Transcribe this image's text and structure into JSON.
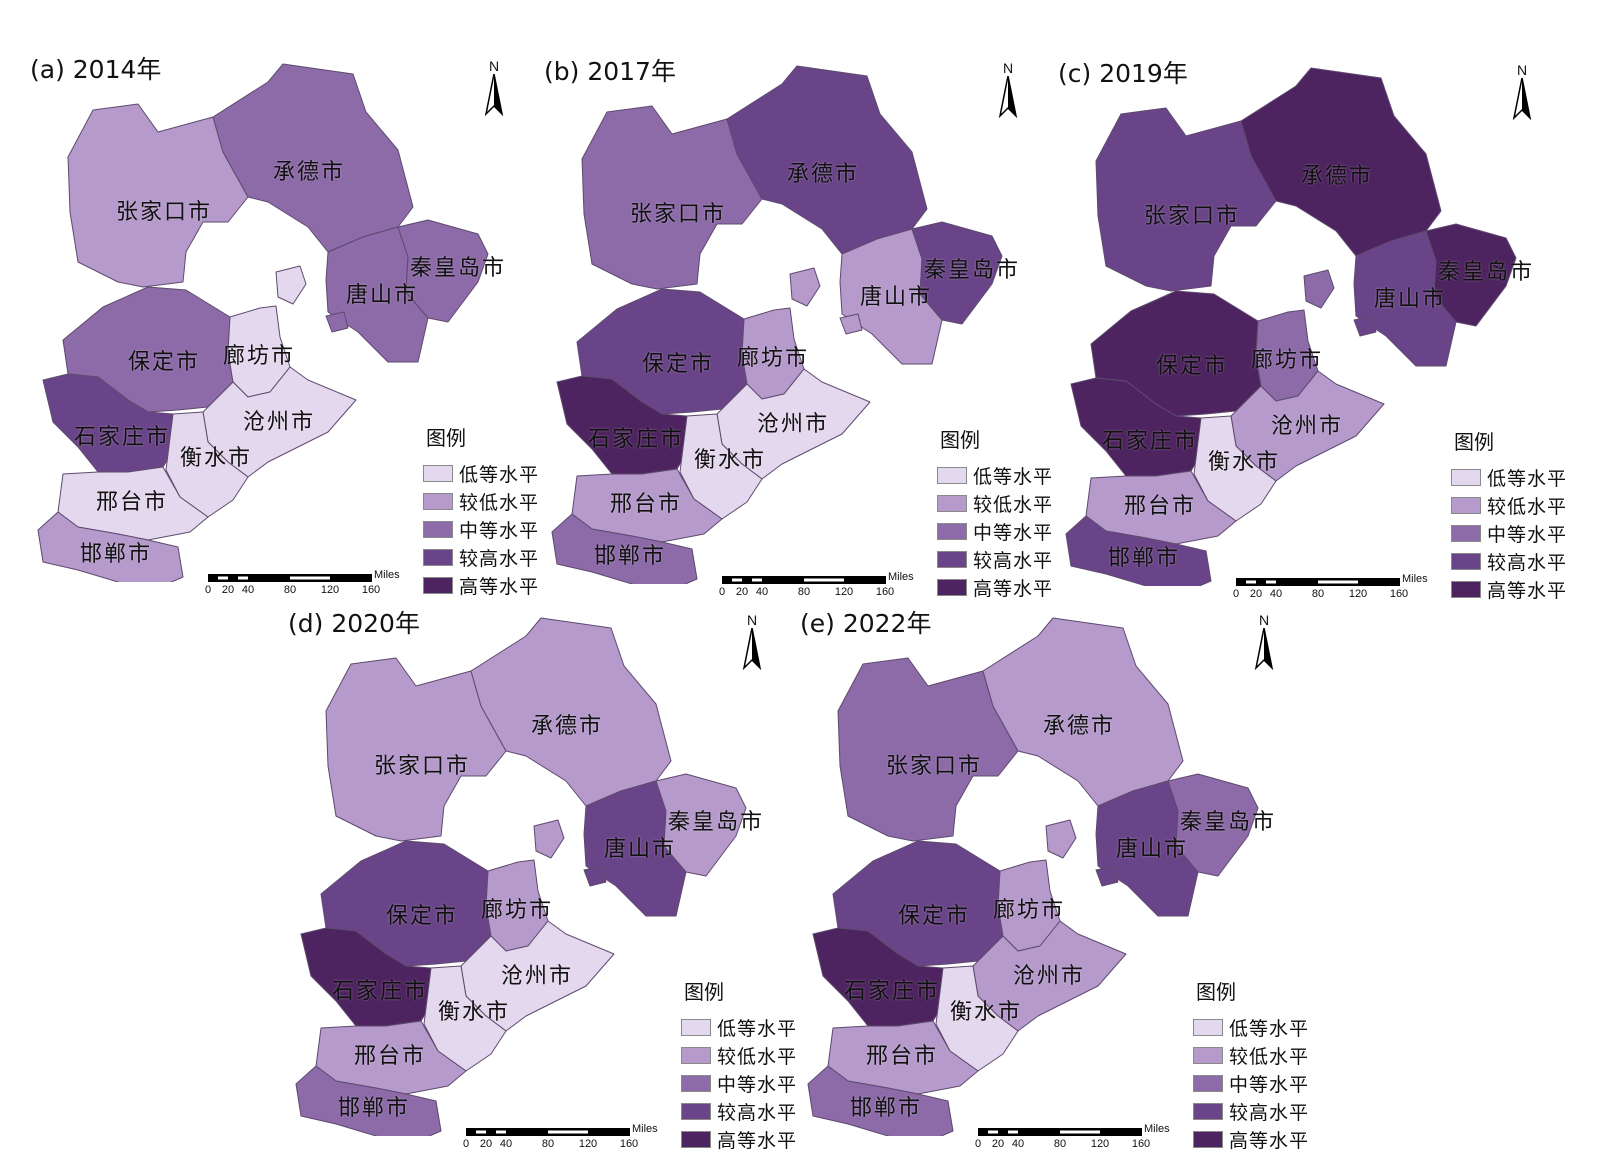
{
  "panels": [
    {
      "title": "(a) 2014年"
    },
    {
      "title": "(b) 2017年"
    },
    {
      "title": "(c) 2019年"
    },
    {
      "title": "(d) 2020年"
    },
    {
      "title": "(e) 2022年"
    }
  ],
  "north_label": "N",
  "legend": {
    "title": "图例",
    "items": [
      {
        "label": "低等水平",
        "color": "#e4d8ee"
      },
      {
        "label": "较低水平",
        "color": "#b59acb"
      },
      {
        "label": "中等水平",
        "color": "#8d6aa8"
      },
      {
        "label": "较高水平",
        "color": "#6a4488"
      },
      {
        "label": "高等水平",
        "color": "#4e2460"
      }
    ]
  },
  "scale_bar": {
    "unit": "Miles",
    "ticks": [
      "0",
      "20",
      "40",
      "80",
      "120",
      "160"
    ]
  },
  "cities": {
    "zhangjiakou": "张家口市",
    "chengde": "承德市",
    "qinhuangdao": "秦皇岛市",
    "tangshan": "唐山市",
    "langfang": "廊坊市",
    "baoding": "保定市",
    "cangzhou": "沧州市",
    "shijiazhuang": "石家庄市",
    "hengshui": "衡水市",
    "xingtai": "邢台市",
    "handan": "邯郸市"
  },
  "levels": [
    {
      "zhangjiakou": 2,
      "chengde": 3,
      "qinhuangdao": 3,
      "tangshan": 3,
      "langfang": 1,
      "baoding": 3,
      "cangzhou": 1,
      "shijiazhuang": 4,
      "hengshui": 1,
      "xingtai": 1,
      "handan": 2
    },
    {
      "zhangjiakou": 3,
      "chengde": 4,
      "qinhuangdao": 4,
      "tangshan": 2,
      "langfang": 2,
      "baoding": 4,
      "cangzhou": 1,
      "shijiazhuang": 5,
      "hengshui": 1,
      "xingtai": 2,
      "handan": 3
    },
    {
      "zhangjiakou": 4,
      "chengde": 5,
      "qinhuangdao": 5,
      "tangshan": 4,
      "langfang": 3,
      "baoding": 5,
      "cangzhou": 2,
      "shijiazhuang": 5,
      "hengshui": 1,
      "xingtai": 2,
      "handan": 4
    },
    {
      "zhangjiakou": 2,
      "chengde": 2,
      "qinhuangdao": 2,
      "tangshan": 4,
      "langfang": 2,
      "baoding": 4,
      "cangzhou": 1,
      "shijiazhuang": 5,
      "hengshui": 1,
      "xingtai": 2,
      "handan": 3
    },
    {
      "zhangjiakou": 3,
      "chengde": 2,
      "qinhuangdao": 3,
      "tangshan": 4,
      "langfang": 2,
      "baoding": 4,
      "cangzhou": 2,
      "shijiazhuang": 5,
      "hengshui": 1,
      "xingtai": 2,
      "handan": 3
    }
  ]
}
